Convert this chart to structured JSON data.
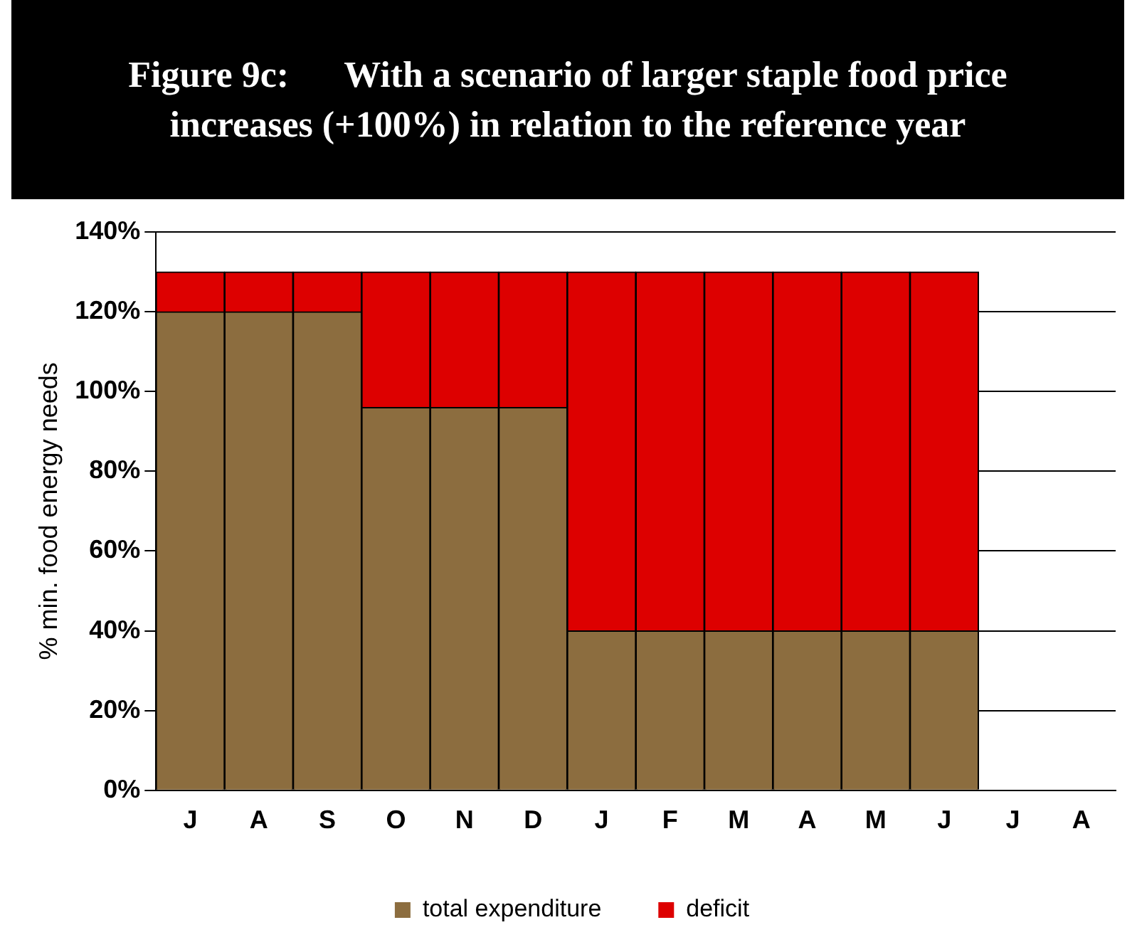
{
  "chart_data": {
    "type": "bar",
    "title": "Figure 9c:      With a scenario of larger staple food price increases (+100%) in relation to the reference year",
    "ylabel": "% min. food energy needs",
    "categories": [
      "J",
      "A",
      "S",
      "O",
      "N",
      "D",
      "J",
      "F",
      "M",
      "A",
      "M",
      "J",
      "J",
      "A"
    ],
    "series": [
      {
        "name": "total expenditure",
        "color": "#8c6d3f",
        "values": [
          120,
          120,
          120,
          96,
          96,
          96,
          40,
          40,
          40,
          40,
          40,
          40,
          null,
          null
        ]
      },
      {
        "name": "deficit",
        "color": "#dd0000",
        "values": [
          10,
          10,
          10,
          34,
          34,
          34,
          90,
          90,
          90,
          90,
          90,
          90,
          null,
          null
        ]
      }
    ],
    "stacked": true,
    "ylim": [
      0,
      140
    ],
    "yticks": [
      {
        "value": 0,
        "label": "0%"
      },
      {
        "value": 20,
        "label": "20%"
      },
      {
        "value": 40,
        "label": "40%"
      },
      {
        "value": 60,
        "label": "60%"
      },
      {
        "value": 80,
        "label": "80%"
      },
      {
        "value": 100,
        "label": "100%"
      },
      {
        "value": 120,
        "label": "120%"
      },
      {
        "value": 140,
        "label": "140%"
      }
    ],
    "grid": "y",
    "legend": "bottom"
  }
}
